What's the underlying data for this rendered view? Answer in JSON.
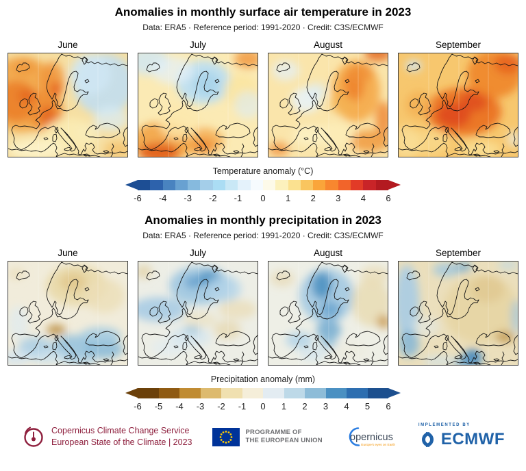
{
  "colors": {
    "c3s_red": "#8e1f3d",
    "eu_blue": "#003399",
    "eu_star_yellow": "#ffcc00",
    "copernicus_blue": "#2a7de1",
    "copernicus_text": "#3c4858",
    "copernicus_orange": "#f39200",
    "ecmwf_blue": "#2062a8"
  },
  "chart_data": [
    {
      "type": "heatmap",
      "id": "temperature",
      "title": "Anomalies in monthly surface air temperature in 2023",
      "subtitle": "Data: ERA5 · Reference period: 1991-2020 · Credit: C3S/ECMWF",
      "region": "Europe",
      "colorbar": {
        "label": "Temperature anomaly (°C)",
        "ticks": [
          "-6",
          "-4",
          "-3",
          "-2",
          "-1",
          "0",
          "1",
          "2",
          "3",
          "4",
          "6"
        ],
        "segment_colors": [
          "#1d4e94",
          "#2d62ac",
          "#4983c0",
          "#68a1d1",
          "#86bade",
          "#a4cee9",
          "#abddf4",
          "#c9e8f6",
          "#e4f2fb",
          "#f6fbfe",
          "#fdfae9",
          "#fcf1bd",
          "#fbe190",
          "#f9c55f",
          "#faa53a",
          "#f8872f",
          "#f2642a",
          "#e23b27",
          "#c92428",
          "#b31a20"
        ],
        "arrow_left": "#1d4e94",
        "arrow_right": "#b31a20"
      },
      "panels": [
        {
          "month": "June",
          "summary": "Strong warm anomalies over the North Atlantic, British Isles, France and Scandinavia; cool anomalies over eastern Europe and western Russia.",
          "base": "#f6dfa2",
          "blobs": [
            [
              20,
              60,
              55,
              55,
              "#f2a648",
              0.9
            ],
            [
              12,
              70,
              30,
              30,
              "#ea7b24",
              0.8
            ],
            [
              55,
              85,
              25,
              30,
              "#ee8d33",
              0.85
            ],
            [
              58,
              92,
              12,
              16,
              "#e4641c",
              0.8
            ],
            [
              28,
              62,
              14,
              10,
              "#e4641c",
              0.7
            ],
            [
              64,
              40,
              18,
              28,
              "#ef9138",
              0.8
            ],
            [
              70,
              52,
              8,
              10,
              "#e4571a",
              0.75
            ],
            [
              24,
              20,
              18,
              12,
              "#f0953c",
              0.7
            ],
            [
              140,
              45,
              45,
              45,
              "#c2def0",
              0.9
            ],
            [
              120,
              30,
              30,
              30,
              "#cfe7f5",
              0.8
            ],
            [
              150,
              95,
              25,
              18,
              "#d8ecf7",
              0.7
            ],
            [
              115,
              115,
              18,
              12,
              "#dcedf7",
              0.6
            ],
            [
              90,
              120,
              40,
              25,
              "#fbecb4",
              0.9
            ],
            [
              40,
              140,
              40,
              15,
              "#fdf3c9",
              0.9
            ],
            [
              160,
              140,
              20,
              12,
              "#f4b95c",
              0.6
            ]
          ]
        },
        {
          "month": "July",
          "summary": "Cool anomalies over Scandinavia and the Baltic; strong warm anomalies over northwest Africa and the central Mediterranean.",
          "base": "#fbeab4",
          "blobs": [
            [
              95,
              42,
              40,
              32,
              "#bedff1",
              0.95
            ],
            [
              100,
              45,
              20,
              18,
              "#a6d2ea",
              0.8
            ],
            [
              15,
              12,
              30,
              20,
              "#cfe7f5",
              0.8
            ],
            [
              50,
              25,
              30,
              20,
              "#e4f1fa",
              0.7
            ],
            [
              35,
              130,
              45,
              30,
              "#f2a445",
              0.9
            ],
            [
              30,
              145,
              30,
              14,
              "#e05a16",
              0.85
            ],
            [
              90,
              128,
              35,
              20,
              "#f4a94c",
              0.8
            ],
            [
              95,
              135,
              15,
              10,
              "#ee7f28",
              0.7
            ],
            [
              160,
              8,
              20,
              14,
              "#f0953c",
              0.8
            ],
            [
              150,
              55,
              25,
              25,
              "#fbe49c",
              0.7
            ],
            [
              160,
              75,
              20,
              20,
              "#dcedf7",
              0.6
            ],
            [
              60,
              100,
              30,
              25,
              "#fce9ac",
              0.8
            ]
          ]
        },
        {
          "month": "August",
          "summary": "Warm anomalies over western Russia, Turkey and the far northeast; near-average to slightly cool over the North Sea area.",
          "base": "#fae5ab",
          "blobs": [
            [
              128,
              55,
              35,
              45,
              "#f5a848",
              0.9
            ],
            [
              125,
              45,
              15,
              25,
              "#ee7f28",
              0.8
            ],
            [
              135,
              28,
              18,
              14,
              "#f09138",
              0.8
            ],
            [
              160,
              0,
              20,
              12,
              "#e4641c",
              0.8
            ],
            [
              148,
              128,
              30,
              16,
              "#f09a3e",
              0.85
            ],
            [
              168,
              95,
              12,
              25,
              "#ee8530",
              0.8
            ],
            [
              55,
              68,
              22,
              18,
              "#e8f3fa",
              0.85
            ],
            [
              70,
              55,
              15,
              12,
              "#ddeef8",
              0.7
            ],
            [
              25,
              25,
              20,
              15,
              "#e4f1fa",
              0.7
            ],
            [
              15,
              140,
              15,
              10,
              "#ef8530",
              0.7
            ],
            [
              95,
              120,
              30,
              20,
              "#fceeb9",
              0.8
            ],
            [
              60,
              120,
              25,
              15,
              "#fdf2c5",
              0.8
            ],
            [
              108,
              75,
              18,
              14,
              "#f3b254",
              0.6
            ]
          ]
        },
        {
          "month": "September",
          "summary": "Record warm anomalies across most of Europe, strongest from France to western Russia; slightly cool near Iceland.",
          "base": "#f7c76e",
          "blobs": [
            [
              95,
              85,
              55,
              35,
              "#ea6f20",
              0.9
            ],
            [
              80,
              90,
              25,
              18,
              "#dd4419",
              0.8
            ],
            [
              110,
              70,
              20,
              15,
              "#dd4419",
              0.7
            ],
            [
              140,
              30,
              40,
              35,
              "#ef8127",
              0.85
            ],
            [
              160,
              15,
              20,
              15,
              "#e4581a",
              0.7
            ],
            [
              22,
              18,
              12,
              8,
              "#cfe7f5",
              0.9
            ],
            [
              40,
              130,
              35,
              18,
              "#f9d98c",
              0.8
            ],
            [
              120,
              140,
              30,
              12,
              "#fae197",
              0.8
            ],
            [
              168,
              125,
              10,
              12,
              "#e8f3fa",
              0.6
            ],
            [
              30,
              75,
              20,
              20,
              "#f4ad4e",
              0.7
            ],
            [
              10,
              130,
              20,
              25,
              "#fadf9a",
              0.7
            ]
          ]
        }
      ]
    },
    {
      "type": "heatmap",
      "id": "precipitation",
      "title": "Anomalies in monthly precipitation in 2023",
      "subtitle": "Data: ERA5 · Reference period: 1991-2020 · Credit: C3S/ECMWF",
      "region": "Europe",
      "colorbar": {
        "label": "Precipitation anomaly (mm)",
        "ticks": [
          "-6",
          "-5",
          "-4",
          "-3",
          "-2",
          "-1",
          "0",
          "1",
          "2",
          "3",
          "4",
          "5",
          "6"
        ],
        "segment_colors": [
          "#6b4009",
          "#8f5a12",
          "#c08b31",
          "#ddba6e",
          "#f0e0b0",
          "#f5eed9",
          "#e3ecf2",
          "#bdd9e8",
          "#8dbcd8",
          "#4a90c2",
          "#2d6eb0",
          "#1c4f8e"
        ],
        "arrow_left": "#6b4009",
        "arrow_right": "#1c4f8e"
      },
      "panels": [
        {
          "month": "June",
          "summary": "Drier than average over Scandinavia and northeastern Europe, dry spot over the Alps; wetter over the Mediterranean, Balkans and Turkey.",
          "base": "#f1ecdb",
          "blobs": [
            [
              100,
              35,
              45,
              30,
              "#e9d9a8",
              0.9
            ],
            [
              95,
              30,
              20,
              14,
              "#e0c488",
              0.7
            ],
            [
              140,
              50,
              30,
              25,
              "#ecdfb8",
              0.8
            ],
            [
              70,
              100,
              14,
              8,
              "#bb8e40",
              0.85
            ],
            [
              40,
              125,
              25,
              15,
              "#a9cee5",
              0.85
            ],
            [
              95,
              125,
              30,
              18,
              "#93c1dd",
              0.85
            ],
            [
              140,
              128,
              28,
              14,
              "#86b9d8",
              0.85
            ],
            [
              135,
              108,
              30,
              12,
              "#9cc8e2",
              0.8
            ],
            [
              15,
              90,
              15,
              25,
              "#dcebf4",
              0.6
            ],
            [
              60,
              140,
              30,
              10,
              "#c6dff0",
              0.7
            ],
            [
              105,
              145,
              25,
              8,
              "#a9cee5",
              0.7
            ],
            [
              12,
              140,
              20,
              12,
              "#cfe3f2",
              0.7
            ],
            [
              12,
              18,
              12,
              8,
              "#e8d9ae",
              0.6
            ]
          ]
        },
        {
          "month": "July",
          "summary": "Wetter than average from the Atlantic across the British Isles to Scandinavia and the Baltic; slightly drier to the east and southeast.",
          "base": "#edeee6",
          "blobs": [
            [
              30,
              70,
              40,
              18,
              "#a8cce4",
              0.9
            ],
            [
              90,
              35,
              45,
              28,
              "#9ec6e1",
              0.9
            ],
            [
              105,
              25,
              18,
              12,
              "#4f93c4",
              0.85
            ],
            [
              80,
              30,
              12,
              10,
              "#5b9bca",
              0.7
            ],
            [
              125,
              40,
              25,
              20,
              "#b4d4e9",
              0.8
            ],
            [
              8,
              15,
              12,
              10,
              "#e2d2a6",
              0.8
            ],
            [
              145,
              70,
              28,
              14,
              "#e9dcb4",
              0.7
            ],
            [
              130,
              100,
              20,
              14,
              "#e6d6ab",
              0.7
            ],
            [
              90,
              85,
              25,
              12,
              "#e9dcb4",
              0.5
            ],
            [
              75,
              110,
              30,
              15,
              "#cbe2f1",
              0.6
            ],
            [
              45,
              125,
              25,
              12,
              "#dcebf5",
              0.5
            ],
            [
              78,
              100,
              12,
              6,
              "#8abbd9",
              0.6
            ]
          ]
        },
        {
          "month": "August",
          "summary": "Much wetter than average over Scandinavia and central Europe down to Italy; drier over the east and around the Caspian region.",
          "base": "#eeefe6",
          "blobs": [
            [
              85,
              50,
              40,
              40,
              "#a3c9e2",
              0.9
            ],
            [
              78,
              35,
              15,
              20,
              "#4a8fc0",
              0.85
            ],
            [
              90,
              70,
              15,
              12,
              "#5b9bca",
              0.7
            ],
            [
              88,
              100,
              18,
              15,
              "#6ba7d0",
              0.8
            ],
            [
              88,
              118,
              12,
              10,
              "#8abbd9",
              0.7
            ],
            [
              45,
              115,
              20,
              12,
              "#aed2e8",
              0.8
            ],
            [
              150,
              60,
              28,
              35,
              "#e9dcb4",
              0.85
            ],
            [
              168,
              88,
              10,
              10,
              "#c89648",
              0.8
            ],
            [
              155,
              20,
              22,
              14,
              "#e9dcb4",
              0.7
            ],
            [
              20,
              25,
              18,
              12,
              "#e6d6ab",
              0.6
            ],
            [
              120,
              130,
              25,
              12,
              "#ecebdd",
              0.6
            ],
            [
              65,
              135,
              20,
              10,
              "#cbe2f1",
              0.6
            ]
          ]
        },
        {
          "month": "September",
          "summary": "Drier than average over much of central and eastern Europe; wetter over the Atlantic, western Iberia and very wet around Greece.",
          "base": "#ebdfbc",
          "blobs": [
            [
              120,
              70,
              55,
              50,
              "#e7d5a4",
              0.9
            ],
            [
              130,
              40,
              25,
              20,
              "#e0c88f",
              0.7
            ],
            [
              12,
              60,
              18,
              55,
              "#a8cce4",
              0.9
            ],
            [
              15,
              120,
              15,
              20,
              "#85b6d6",
              0.85
            ],
            [
              70,
              12,
              20,
              10,
              "#9cc6e0",
              0.8
            ],
            [
              95,
              8,
              12,
              8,
              "#6ba7d0",
              0.7
            ],
            [
              108,
              140,
              14,
              12,
              "#3b82b8",
              0.9
            ],
            [
              100,
              148,
              20,
              8,
              "#5b9bca",
              0.8
            ],
            [
              155,
              110,
              14,
              8,
              "#bb8e40",
              0.8
            ],
            [
              172,
              80,
              8,
              25,
              "#9cc6e0",
              0.7
            ],
            [
              40,
              95,
              20,
              15,
              "#dfecf0",
              0.5
            ],
            [
              60,
              145,
              25,
              8,
              "#cbe2f1",
              0.6
            ],
            [
              160,
              5,
              15,
              8,
              "#bcd8ea",
              0.6
            ]
          ]
        }
      ]
    }
  ],
  "footer": {
    "c3s": {
      "line1": "Copernicus Climate Change Service",
      "line2": "European State of the Climate | 2023"
    },
    "eu_programme": {
      "line1": "PROGRAMME OF",
      "line2": "THE EUROPEAN UNION"
    },
    "copernicus": {
      "wordmark": "opernicus",
      "tagline": "Europe's eyes on Earth"
    },
    "ecmwf": {
      "implemented_by": "IMPLEMENTED BY",
      "wordmark": "ECMWF"
    }
  }
}
